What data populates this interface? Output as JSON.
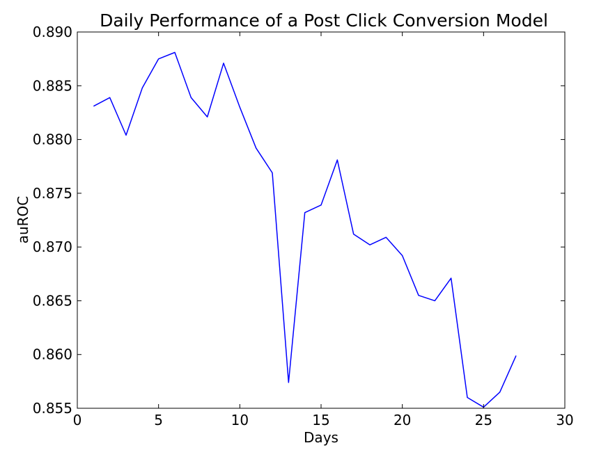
{
  "chart_data": {
    "type": "line",
    "title": "Daily Performance of a Post Click Conversion Model",
    "xlabel": "Days",
    "ylabel": "auROC",
    "xlim": [
      0,
      30
    ],
    "ylim": [
      0.855,
      0.89
    ],
    "x_ticks": [
      0,
      5,
      10,
      15,
      20,
      25,
      30
    ],
    "y_ticks": [
      0.855,
      0.86,
      0.865,
      0.87,
      0.875,
      0.88,
      0.885,
      0.89
    ],
    "x_tick_labels": [
      "0",
      "5",
      "10",
      "15",
      "20",
      "25",
      "30"
    ],
    "y_tick_labels": [
      "0.855",
      "0.860",
      "0.865",
      "0.870",
      "0.875",
      "0.880",
      "0.885",
      "0.890"
    ],
    "grid": false,
    "series": [
      {
        "color": "#0000ff",
        "x": [
          1,
          2,
          3,
          4,
          5,
          6,
          7,
          8,
          9,
          10,
          11,
          12,
          13,
          14,
          15,
          16,
          17,
          18,
          19,
          20,
          21,
          22,
          23,
          24,
          25,
          26,
          27
        ],
        "y": [
          0.8831,
          0.8839,
          0.8804,
          0.8848,
          0.8875,
          0.8881,
          0.8839,
          0.8821,
          0.8871,
          0.883,
          0.8792,
          0.8769,
          0.8574,
          0.8732,
          0.8739,
          0.8781,
          0.8712,
          0.8702,
          0.8709,
          0.8692,
          0.8655,
          0.865,
          0.8671,
          0.856,
          0.8551,
          0.8565,
          0.8599
        ]
      }
    ]
  }
}
